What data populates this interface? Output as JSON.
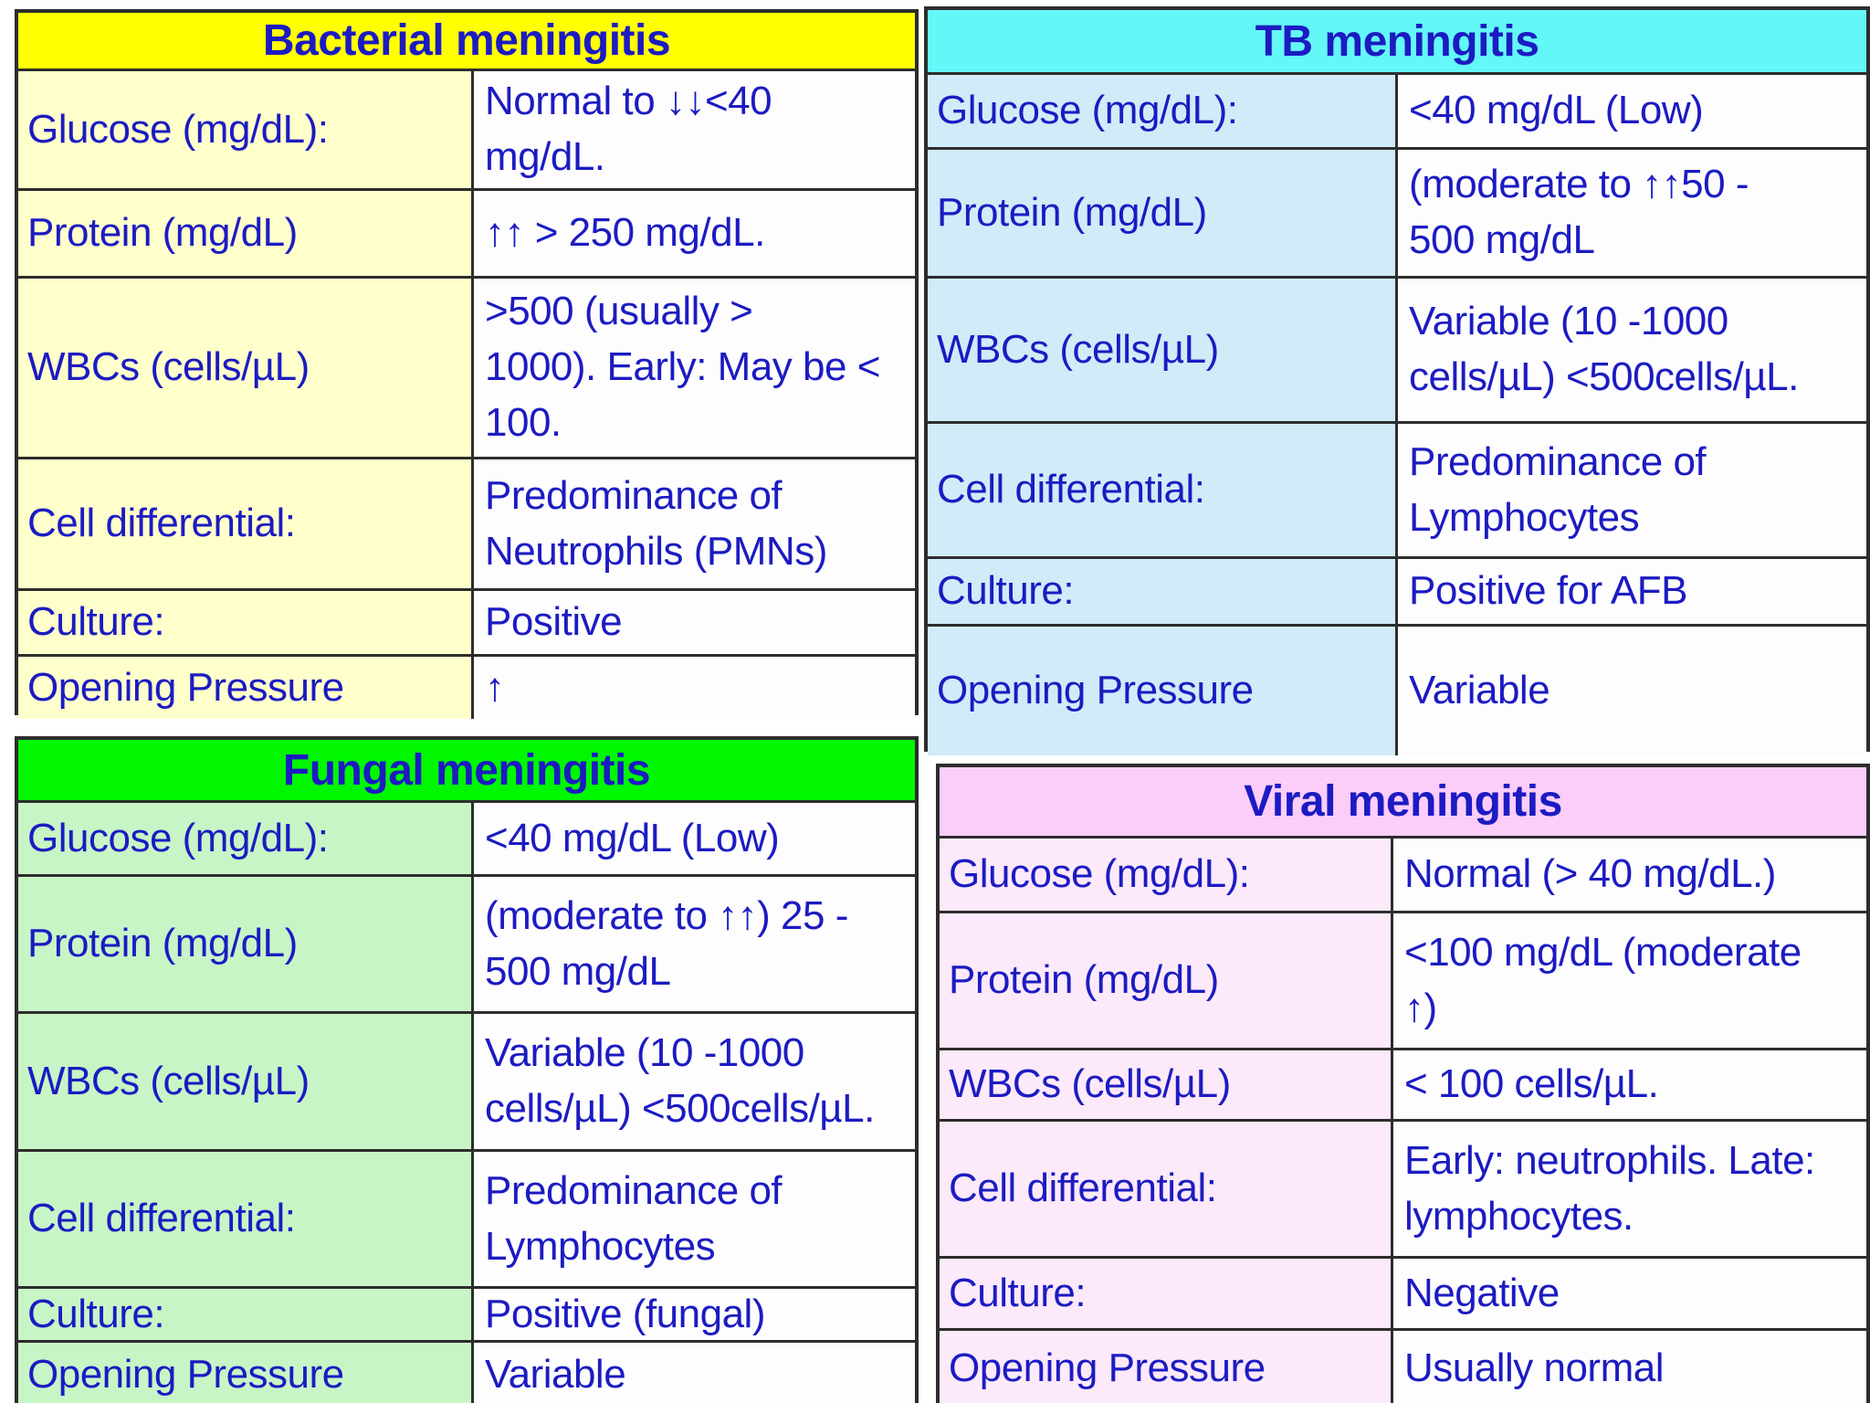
{
  "colors": {
    "text": "#1c1bc2",
    "border": "#2d2d2d",
    "value_bg": "#fdfdfd",
    "page_bg": "#ffffff"
  },
  "tables": [
    {
      "id": "bacterial",
      "title": "Bacterial meningitis",
      "header_bg": "#ffff00",
      "label_bg": "#ffffcc",
      "rows": [
        {
          "label": "Glucose (mg/dL):",
          "value": "Normal to ↓↓<40\nmg/dL."
        },
        {
          "label": "Protein (mg/dL)",
          "value": "↑↑ > 250 mg/dL."
        },
        {
          "label": "WBCs (cells/µL)",
          "value": ">500 (usually >\n1000).  Early: May be <\n100."
        },
        {
          "label": "Cell differential:",
          "value": "Predominance of\nNeutrophils (PMNs)"
        },
        {
          "label": "Culture:",
          "value": "Positive"
        },
        {
          "label": "Opening Pressure",
          "value": "↑"
        }
      ]
    },
    {
      "id": "tb",
      "title": "TB meningitis",
      "header_bg": "#63f7f7",
      "label_bg": "#d2ebf8",
      "rows": [
        {
          "label": "Glucose (mg/dL):",
          "value": "<40 mg/dL (Low)"
        },
        {
          "label": "Protein (mg/dL)",
          "value": "(moderate to ↑↑50 -\n500 mg/dL"
        },
        {
          "label": "WBCs (cells/µL)",
          "value": "Variable (10 -1000\ncells/µL) <500cells/µL."
        },
        {
          "label": "Cell differential:",
          "value": "Predominance of\nLymphocytes"
        },
        {
          "label": "Culture:",
          "value": "Positive for AFB"
        },
        {
          "label": "Opening Pressure",
          "value": "Variable"
        }
      ]
    },
    {
      "id": "fungal",
      "title": "Fungal meningitis",
      "header_bg": "#00f700",
      "label_bg": "#c8f5c6",
      "rows": [
        {
          "label": "Glucose (mg/dL):",
          "value": "<40 mg/dL (Low)"
        },
        {
          "label": "Protein (mg/dL)",
          "value": "(moderate to ↑↑) 25 -\n500 mg/dL"
        },
        {
          "label": "WBCs (cells/µL)",
          "value": "Variable (10 -1000\ncells/µL) <500cells/µL."
        },
        {
          "label": "Cell differential:",
          "value": "Predominance of\nLymphocytes"
        },
        {
          "label": "Culture:",
          "value": "Positive (fungal)"
        },
        {
          "label": "Opening Pressure",
          "value": "Variable"
        }
      ]
    },
    {
      "id": "viral",
      "title": "Viral meningitis",
      "header_bg": "#fccdf8",
      "label_bg": "#fce9f9",
      "rows": [
        {
          "label": "Glucose (mg/dL):",
          "value": "Normal  (> 40 mg/dL.)"
        },
        {
          "label": "Protein (mg/dL)",
          "value": "<100 mg/dL (moderate\n↑)"
        },
        {
          "label": "WBCs (cells/µL)",
          "value": "< 100 cells/µL."
        },
        {
          "label": "Cell differential:",
          "value": "Early: neutrophils. Late:\nlymphocytes."
        },
        {
          "label": "Culture:",
          "value": "Negative"
        },
        {
          "label": "Opening Pressure",
          "value": "Usually normal"
        }
      ]
    }
  ]
}
